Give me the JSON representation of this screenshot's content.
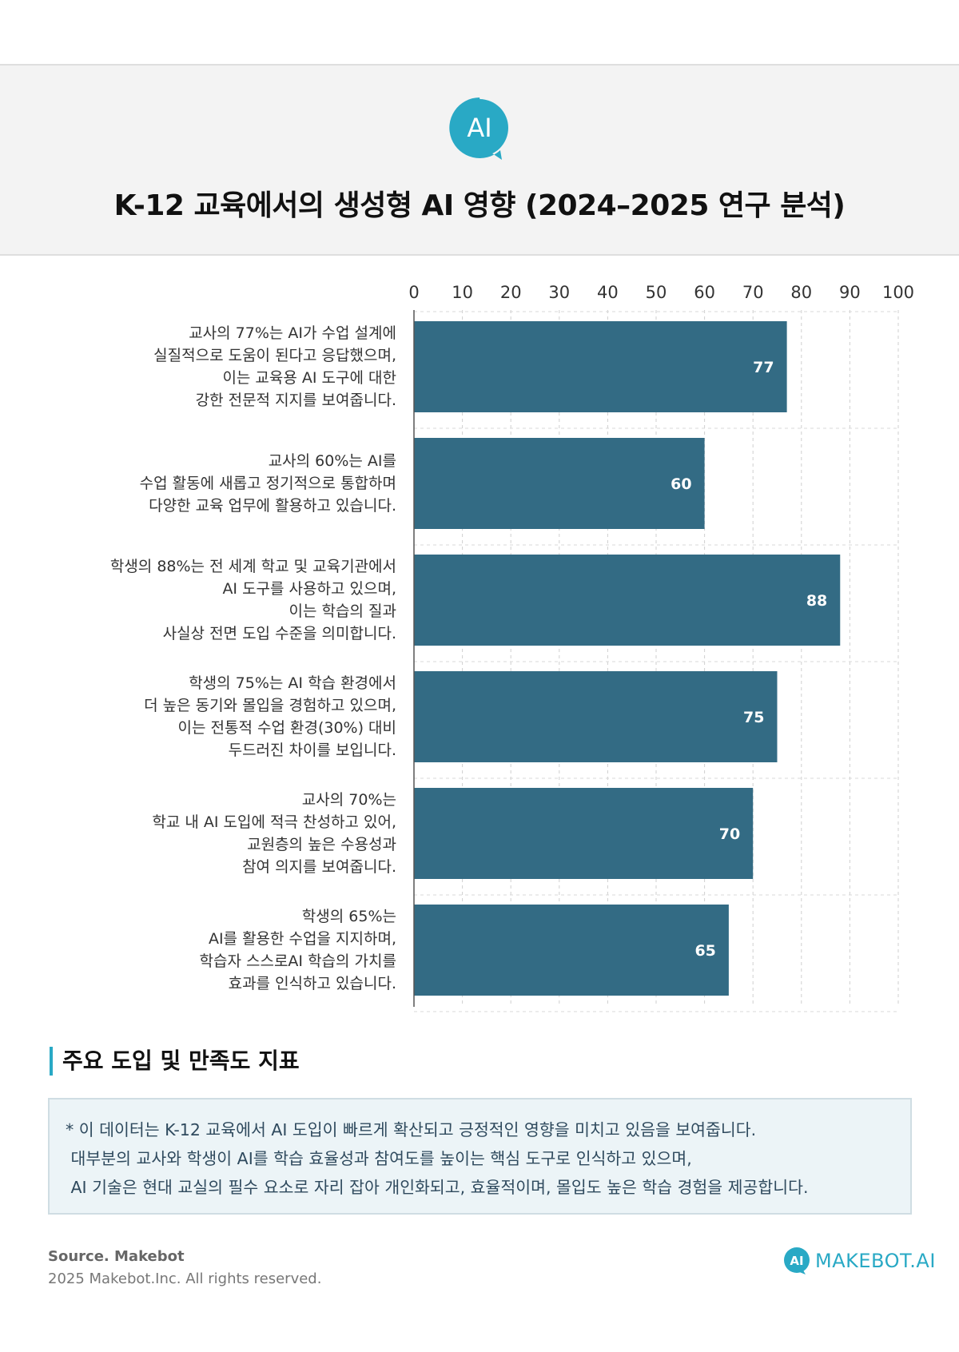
{
  "header": {
    "badge_text": "AI",
    "title": "K-12 교육에서의 생성형 AI 영향 (2024–2025 연구 분석)"
  },
  "chart_data": {
    "type": "bar",
    "orientation": "horizontal",
    "xlim": [
      0,
      100
    ],
    "xticks": [
      0,
      10,
      20,
      30,
      40,
      50,
      60,
      70,
      80,
      90,
      100
    ],
    "grid": true,
    "bar_color": "#336b84",
    "categories": [
      "교사의 77%는 AI가 수업 설계에\n실질적으로 도움이 된다고 응답했으며,\n이는 교육용 AI 도구에 대한\n강한 전문적 지지를 보여줍니다.",
      "교사의 60%는 AI를\n수업 활동에 새롭고 정기적으로 통합하며\n다양한 교육 업무에 활용하고 있습니다.",
      "학생의 88%는 전 세계 학교 및 교육기관에서\nAI 도구를 사용하고 있으며,\n이는 학습의 질과\n사실상 전면 도입 수준을 의미합니다.",
      "학생의 75%는 AI 학습 환경에서\n더 높은 동기와 몰입을 경험하고 있으며,\n이는 전통적 수업 환경(30%) 대비\n두드러진 차이를 보입니다.",
      "교사의 70%는\n학교 내 AI 도입에 적극 찬성하고 있어,\n교원층의 높은 수용성과\n참여 의지를 보여줍니다.",
      "학생의 65%는\nAI를 활용한 수업을 지지하며,\n학습자 스스로AI 학습의 가치를\n효과를 인식하고 있습니다."
    ],
    "values": [
      77,
      60,
      88,
      75,
      70,
      65
    ]
  },
  "section": {
    "title": "주요 도입 및 만족도 지표"
  },
  "note": {
    "lines": [
      "* 이 데이터는 K-12 교육에서 AI 도입이 빠르게 확산되고 긍정적인 영향을 미치고 있음을 보여줍니다.",
      " 대부분의 교사와 학생이 AI를 학습 효율성과 참여도를 높이는 핵심 도구로 인식하고 있으며,",
      " AI 기술은 현대 교실의 필수 요소로 자리 잡아 개인화되고, 효율적이며, 몰입도 높은 학습 경험을 제공합니다."
    ]
  },
  "footer": {
    "source": "Source. Makebot",
    "copyright": "2025 Makebot.Inc. All rights reserved.",
    "brand_icon_text": "AI",
    "brand_name": "MAKEBOT.AI"
  },
  "colors": {
    "accent": "#29a9c5",
    "bar": "#336b84",
    "note_bg": "#ecf4f7"
  }
}
